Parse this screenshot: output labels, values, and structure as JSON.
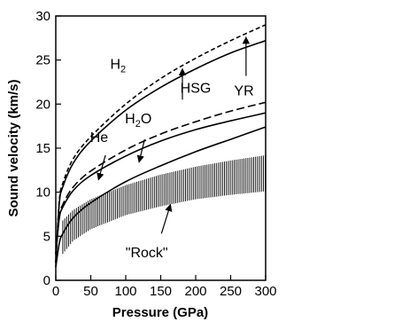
{
  "chart_data": {
    "type": "line",
    "xlabel": "Pressure (GPa)",
    "ylabel": "Sound velocity (km/s)",
    "xlim": [
      0,
      300
    ],
    "ylim": [
      0,
      30
    ],
    "xticks": [
      "0",
      "50",
      "100",
      "150",
      "200",
      "250",
      "300"
    ],
    "yticks": [
      "0",
      "5",
      "10",
      "15",
      "20",
      "25",
      "30"
    ],
    "grid": false,
    "legend": "none",
    "series": [
      {
        "style": "dashed",
        "x": [
          0,
          5,
          10,
          25,
          50,
          100,
          150,
          200,
          250,
          300
        ],
        "y": [
          2.0,
          9.0,
          11.0,
          13.8,
          16.3,
          20.0,
          22.9,
          25.2,
          27.2,
          29.0
        ]
      },
      {
        "style": "solid",
        "x": [
          0,
          5,
          10,
          25,
          50,
          100,
          150,
          200,
          250,
          300
        ],
        "y": [
          2.0,
          8.7,
          10.6,
          13.3,
          15.8,
          19.3,
          21.9,
          24.0,
          25.8,
          27.2
        ]
      },
      {
        "style": "dashed",
        "x": [
          0,
          5,
          10,
          25,
          50,
          100,
          150,
          200,
          250,
          300
        ],
        "y": [
          3.0,
          7.2,
          8.6,
          10.6,
          12.4,
          14.8,
          16.6,
          18.0,
          19.2,
          20.2
        ]
      },
      {
        "style": "solid",
        "x": [
          0,
          5,
          10,
          25,
          50,
          100,
          150,
          200,
          250,
          300
        ],
        "y": [
          3.0,
          7.0,
          8.3,
          10.2,
          11.9,
          14.1,
          15.8,
          17.1,
          18.1,
          19.0
        ]
      },
      {
        "style": "solid",
        "x": [
          0,
          5,
          10,
          25,
          50,
          100,
          150,
          200,
          250,
          300
        ],
        "y": [
          1.5,
          4.2,
          5.3,
          7.1,
          8.8,
          11.2,
          13.0,
          14.6,
          16.0,
          17.4
        ]
      }
    ],
    "band": {
      "x_start": 10,
      "x_end": 300,
      "upper": {
        "x": [
          10,
          25,
          50,
          100,
          150,
          200,
          250,
          300
        ],
        "y": [
          6.8,
          8.0,
          9.2,
          10.8,
          12.0,
          12.9,
          13.6,
          14.2
        ]
      },
      "lower": {
        "x": [
          10,
          25,
          50,
          100,
          150,
          200,
          250,
          300
        ],
        "y": [
          3.0,
          4.5,
          5.8,
          7.4,
          8.4,
          9.2,
          9.7,
          10.1
        ]
      }
    },
    "annotations": [
      {
        "id": "h2",
        "text": "H",
        "sub": "2",
        "x": 89,
        "y": 24.0
      },
      {
        "id": "hsg",
        "text": "HSG",
        "x": 200,
        "y": 21.3
      },
      {
        "id": "yr",
        "text": "YR",
        "x": 269,
        "y": 21.0
      },
      {
        "id": "h2o",
        "text": "H",
        "sub": "2",
        "tail": "O",
        "x": 118,
        "y": 17.8
      },
      {
        "id": "he",
        "text": "He",
        "x": 62,
        "y": 15.7
      },
      {
        "id": "rock",
        "text": "\"Rock\"",
        "x": 130,
        "y": 2.6
      }
    ],
    "arrows": [
      {
        "id": "hsg-arrow",
        "from": [
          181,
          20.5
        ],
        "to": [
          181,
          24.0
        ]
      },
      {
        "id": "yr-arrow",
        "from": [
          272,
          23.2
        ],
        "to": [
          272,
          27.6
        ]
      },
      {
        "id": "he-arrow",
        "from": [
          71,
          14.2
        ],
        "to": [
          61,
          11.4
        ]
      },
      {
        "id": "h2o-arrow",
        "from": [
          127,
          16.0
        ],
        "to": [
          119,
          13.4
        ]
      },
      {
        "id": "rock-arrow",
        "from": [
          151,
          5.3
        ],
        "to": [
          164,
          8.6
        ]
      }
    ]
  }
}
